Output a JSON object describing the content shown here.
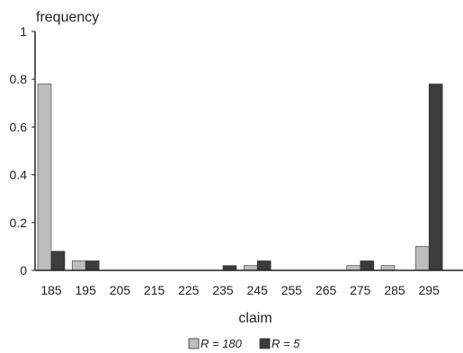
{
  "chart_data": {
    "type": "bar",
    "ylabel": "frequency",
    "xlabel": "claim",
    "ylim": [
      0,
      1
    ],
    "yticks": [
      "0",
      "0.2",
      "0.4",
      "0.6",
      "0.8",
      "1"
    ],
    "categories": [
      "185",
      "195",
      "205",
      "215",
      "225",
      "235",
      "245",
      "255",
      "265",
      "275",
      "285",
      "295"
    ],
    "series": [
      {
        "name": "R = 180",
        "color": "#bdbdbd",
        "values": [
          0.78,
          0.04,
          0,
          0,
          0,
          0,
          0.02,
          0,
          0,
          0.02,
          0.02,
          0.1
        ]
      },
      {
        "name": "R = 5",
        "color": "#3c3c3c",
        "values": [
          0.08,
          0.04,
          0,
          0,
          0,
          0.02,
          0.04,
          0,
          0,
          0.04,
          0,
          0.78
        ]
      }
    ],
    "legend": {
      "position": "bottom-center",
      "labels": [
        "R = 180",
        "R = 5"
      ]
    },
    "grid": false
  }
}
